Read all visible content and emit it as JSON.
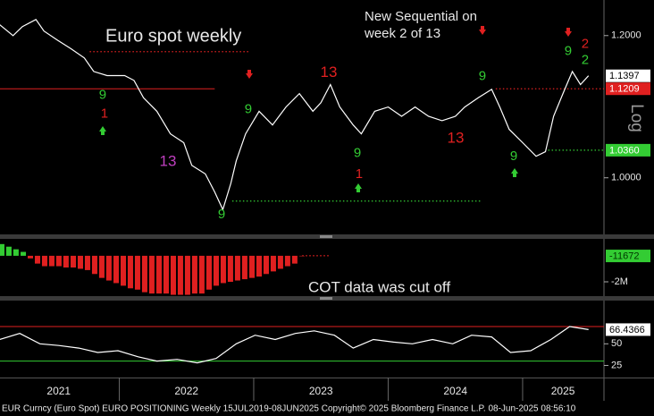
{
  "title": "Euro spot weekly",
  "subtitle": [
    "New Sequential on",
    "week 2 of 13"
  ],
  "axis_label": "Log",
  "footer": "EUR Curncy (Euro Spot) EURO POSITIONING  Weekly 15JUL2019-08JUN2025 Copyright© 2025 Bloomberg Finance L.P.  08-Jun-2025 08:56:10",
  "x_axis": {
    "xlim": [
      2021.113,
      2025.605
    ],
    "xticks": [
      2022,
      2023,
      2024,
      2025
    ],
    "labels": [
      {
        "value": 2021.55,
        "label": "2021"
      },
      {
        "value": 2022.5,
        "label": "2022"
      },
      {
        "value": 2023.5,
        "label": "2023"
      },
      {
        "value": 2024.5,
        "label": "2024"
      },
      {
        "value": 2025.3,
        "label": "2025"
      }
    ]
  },
  "chart_data": [
    {
      "type": "line",
      "log_scale": true,
      "color": "#ffffff",
      "ylim": [
        0.93,
        1.256
      ],
      "yticks": [
        {
          "value": 1.2,
          "label": "1.2000"
        },
        {
          "value": 1.0,
          "label": "1.0000"
        }
      ],
      "x": [
        2021.11,
        2021.21,
        2021.28,
        2021.38,
        2021.44,
        2021.54,
        2021.64,
        2021.74,
        2021.81,
        2021.91,
        2022.04,
        2022.11,
        2022.18,
        2022.28,
        2022.38,
        2022.48,
        2022.54,
        2022.64,
        2022.71,
        2022.77,
        2022.83,
        2022.87,
        2022.94,
        2023.04,
        2023.14,
        2023.24,
        2023.34,
        2023.44,
        2023.5,
        2023.57,
        2023.64,
        2023.74,
        2023.8,
        2023.9,
        2024.0,
        2024.1,
        2024.2,
        2024.3,
        2024.4,
        2024.5,
        2024.57,
        2024.67,
        2024.77,
        2024.83,
        2024.9,
        2025.0,
        2025.1,
        2025.17,
        2025.23,
        2025.3,
        2025.37,
        2025.43,
        2025.49
      ],
      "values": [
        1.217,
        1.2,
        1.214,
        1.225,
        1.207,
        1.193,
        1.18,
        1.166,
        1.146,
        1.14,
        1.14,
        1.133,
        1.108,
        1.089,
        1.058,
        1.046,
        1.016,
        1.005,
        0.982,
        0.96,
        0.993,
        1.022,
        1.058,
        1.089,
        1.07,
        1.095,
        1.114,
        1.089,
        1.101,
        1.127,
        1.095,
        1.07,
        1.058,
        1.089,
        1.095,
        1.082,
        1.095,
        1.082,
        1.076,
        1.082,
        1.095,
        1.108,
        1.12,
        1.095,
        1.064,
        1.046,
        1.028,
        1.034,
        1.082,
        1.114,
        1.146,
        1.127,
        1.1397
      ],
      "levels": [
        {
          "value": 1.1209,
          "label": "1.1209",
          "color": "#e02020",
          "style": "solid",
          "x": [
            2021.113,
            2022.71
          ]
        },
        {
          "value": 1.036,
          "label": "1.0360",
          "color": "#33cc33",
          "style": "dotted",
          "x": [
            2025.19,
            2025.605
          ]
        },
        {
          "value": 1.1755,
          "color": "#e02020",
          "style": "dotted",
          "x": [
            2021.78,
            2022.97
          ]
        },
        {
          "value": 0.9706,
          "color": "#33cc33",
          "style": "dotted",
          "x": [
            2022.84,
            2024.7
          ]
        },
        {
          "value": 1.1209,
          "color": "#e02020",
          "style": "dotted",
          "x": [
            2024.8,
            2025.605
          ]
        }
      ],
      "annotations": [
        {
          "text": "9",
          "x": 2021.877,
          "y": 1.1113,
          "color": "#33cc33"
        },
        {
          "text": "1",
          "x": 2021.89,
          "y": 1.0848,
          "color": "#e02020"
        },
        {
          "text": "13",
          "x": 2022.362,
          "y": 1.0207,
          "color": "#c040c0"
        },
        {
          "text": "9",
          "x": 2022.761,
          "y": 0.954,
          "color": "#33cc33"
        },
        {
          "text": "9",
          "x": 2022.96,
          "y": 1.0912,
          "color": "#33cc33"
        },
        {
          "text": "13",
          "x": 2023.558,
          "y": 1.1436,
          "color": "#e02020"
        },
        {
          "text": "9",
          "x": 2023.771,
          "y": 1.0314,
          "color": "#33cc33"
        },
        {
          "text": "1",
          "x": 2023.784,
          "y": 1.0045,
          "color": "#e02020"
        },
        {
          "text": "13",
          "x": 2024.502,
          "y": 1.0517,
          "color": "#e02020"
        },
        {
          "text": "9",
          "x": 2024.701,
          "y": 1.1386,
          "color": "#33cc33"
        },
        {
          "text": "9",
          "x": 2024.934,
          "y": 1.0278,
          "color": "#33cc33"
        },
        {
          "text": "9",
          "x": 2025.339,
          "y": 1.1755,
          "color": "#33cc33"
        },
        {
          "text": "2",
          "x": 2025.465,
          "y": 1.1863,
          "color": "#e02020"
        },
        {
          "text": "2",
          "x": 2025.465,
          "y": 1.1621,
          "color": "#33cc33"
        }
      ]
    },
    {
      "type": "bar",
      "note": "COT data was cut off",
      "pos_color": "#33cc33",
      "neg_color": "#e02020",
      "ylim": [
        -3100000,
        1300000
      ],
      "yticks": [
        {
          "value": -2000000,
          "label": "-2M"
        }
      ],
      "x": [
        2021.126,
        2021.179,
        2021.232,
        2021.286,
        2021.339,
        2021.392,
        2021.445,
        2021.498,
        2021.551,
        2021.604,
        2021.658,
        2021.711,
        2021.764,
        2021.817,
        2021.87,
        2021.923,
        2021.977,
        2022.03,
        2022.083,
        2022.136,
        2022.189,
        2022.242,
        2022.296,
        2022.349,
        2022.402,
        2022.455,
        2022.508,
        2022.561,
        2022.614,
        2022.668,
        2022.721,
        2022.774,
        2022.827,
        2022.88,
        2022.933,
        2022.987,
        2023.04,
        2023.093,
        2023.146,
        2023.199,
        2023.252,
        2023.305,
        2023.359
      ],
      "values": [
        900000,
        700000,
        500000,
        300000,
        -200000,
        -600000,
        -800000,
        -800000,
        -800000,
        -900000,
        -900000,
        -1000000,
        -1100000,
        -1400000,
        -1700000,
        -1900000,
        -2100000,
        -2300000,
        -2500000,
        -2600000,
        -2800000,
        -2900000,
        -2900000,
        -2900000,
        -3000000,
        -3000000,
        -3000000,
        -2900000,
        -2900000,
        -2600000,
        -2300000,
        -2100000,
        -2000000,
        -1900000,
        -1800000,
        -1700000,
        -1600000,
        -1400000,
        -1200000,
        -1000000,
        -800000,
        -600000,
        -11672
      ]
    },
    {
      "type": "line",
      "color": "#ffffff",
      "ylim": [
        11,
        100
      ],
      "yticks": [
        50,
        25
      ],
      "hlines": [
        {
          "value": 70,
          "color": "#e02020"
        },
        {
          "value": 30,
          "color": "#33cc33"
        }
      ],
      "x": [
        2021.11,
        2021.26,
        2021.41,
        2021.55,
        2021.7,
        2021.84,
        2021.99,
        2022.14,
        2022.28,
        2022.43,
        2022.58,
        2022.72,
        2022.87,
        2023.01,
        2023.16,
        2023.31,
        2023.45,
        2023.6,
        2023.74,
        2023.89,
        2024.04,
        2024.18,
        2024.33,
        2024.48,
        2024.62,
        2024.77,
        2024.91,
        2025.06,
        2025.21,
        2025.35,
        2025.49
      ],
      "values": [
        55,
        62,
        50,
        48,
        45,
        40,
        42,
        35,
        30,
        32,
        28,
        33,
        50,
        60,
        55,
        62,
        65,
        60,
        45,
        55,
        52,
        50,
        55,
        50,
        60,
        58,
        40,
        42,
        55,
        70,
        66.4366
      ]
    }
  ]
}
